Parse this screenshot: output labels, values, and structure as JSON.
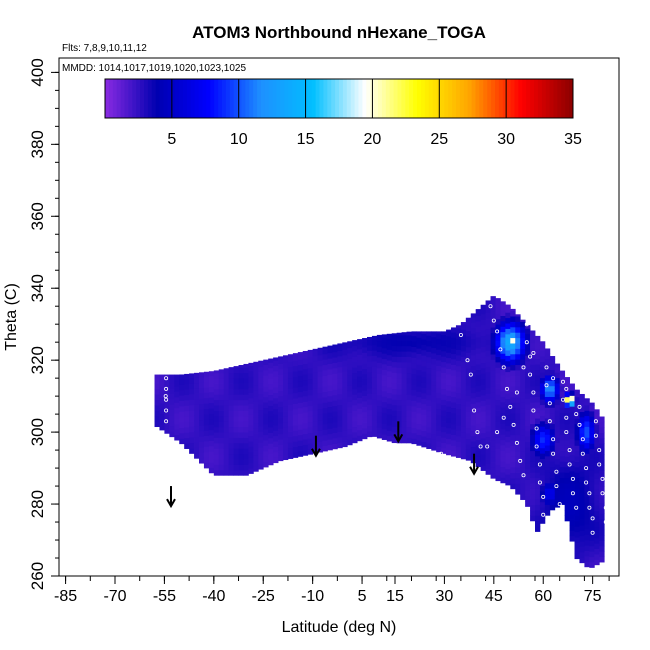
{
  "chart_data": {
    "type": "heatmap",
    "title": "ATOM3 Northbound nHexane_TOGA",
    "subtitle_lines": [
      "Flts: 7,8,9,10,11,12",
      "MMDD: 1014,1017,1019,1020,1023,1025"
    ],
    "xlabel": "Latitude (deg N)",
    "ylabel": "Theta (C)",
    "xlim": [
      -87,
      83
    ],
    "ylim": [
      260,
      404
    ],
    "x_ticks": [
      -85,
      -70,
      -55,
      -40,
      -25,
      -10,
      5,
      15,
      30,
      45,
      60,
      75
    ],
    "x_tick_labels": [
      "-85",
      "-70",
      "-55",
      "-40",
      "-25",
      "-10",
      "5",
      "15",
      "30",
      "45",
      "60",
      "75"
    ],
    "y_ticks": [
      260,
      280,
      300,
      320,
      340,
      360,
      380,
      400
    ],
    "y_tick_labels": [
      "260",
      "280",
      "300",
      "320",
      "340",
      "360",
      "380",
      "400"
    ],
    "colorbar": {
      "min": 0,
      "max": 35,
      "ticks": [
        5,
        10,
        15,
        20,
        25,
        30,
        35
      ],
      "tick_labels": [
        "5",
        "10",
        "15",
        "20",
        "25",
        "30",
        "35"
      ],
      "colors": [
        "#8a2be2",
        "#0000b0",
        "#0000ff",
        "#1e90ff",
        "#00bfff",
        "#ffffff",
        "#ffff00",
        "#ffa500",
        "#ff0000",
        "#8b0000"
      ]
    },
    "field": {
      "upper_boundary": [
        [
          -58,
          316
        ],
        [
          -50,
          316
        ],
        [
          -40,
          317
        ],
        [
          -30,
          319
        ],
        [
          -20,
          321
        ],
        [
          -10,
          323
        ],
        [
          0,
          325
        ],
        [
          10,
          327
        ],
        [
          20,
          328
        ],
        [
          30,
          328
        ],
        [
          35,
          330
        ],
        [
          40,
          334
        ],
        [
          45,
          338
        ],
        [
          50,
          335
        ],
        [
          55,
          330
        ],
        [
          60,
          325
        ],
        [
          65,
          318
        ],
        [
          70,
          312
        ],
        [
          75,
          308
        ],
        [
          78,
          304
        ]
      ],
      "lower_boundary": [
        [
          -58,
          302
        ],
        [
          -50,
          297
        ],
        [
          -40,
          288
        ],
        [
          -30,
          288
        ],
        [
          -20,
          292
        ],
        [
          -10,
          294
        ],
        [
          0,
          296
        ],
        [
          8,
          299
        ],
        [
          15,
          297
        ],
        [
          20,
          297
        ],
        [
          30,
          294
        ],
        [
          38,
          292
        ],
        [
          45,
          287
        ],
        [
          50,
          285
        ],
        [
          55,
          280
        ],
        [
          58,
          272
        ],
        [
          62,
          278
        ],
        [
          66,
          280
        ],
        [
          70,
          265
        ],
        [
          74,
          262
        ],
        [
          78,
          264
        ]
      ],
      "base_value": 2.5,
      "enhancements": [
        {
          "lat": 50,
          "theta": 325,
          "value": 14,
          "spread_lat": 5,
          "spread_theta": 6
        },
        {
          "lat": 51,
          "theta": 325,
          "value": 25,
          "spread_lat": 1,
          "spread_theta": 1.2
        },
        {
          "lat": 62,
          "theta": 312,
          "value": 12,
          "spread_lat": 3,
          "spread_theta": 4
        },
        {
          "lat": 68,
          "theta": 309,
          "value": 28,
          "spread_lat": 1.5,
          "spread_theta": 1.5
        },
        {
          "lat": 73,
          "theta": 300,
          "value": 10,
          "spread_lat": 3,
          "spread_theta": 6
        },
        {
          "lat": 60,
          "theta": 298,
          "value": 9,
          "spread_lat": 4,
          "spread_theta": 5
        },
        {
          "lat": 62,
          "theta": 283,
          "value": 7,
          "spread_lat": 3,
          "spread_theta": 4
        }
      ],
      "dark_zones": [
        {
          "lat": 68,
          "theta": 280,
          "value": 4.5,
          "spread_lat": 8,
          "spread_theta": 12
        },
        {
          "lat": 20,
          "theta": 325,
          "value": 3.8,
          "spread_lat": 25,
          "spread_theta": 4
        }
      ]
    },
    "sample_points": [
      [
        -54.5,
        315
      ],
      [
        -54.5,
        312
      ],
      [
        -54.5,
        309
      ],
      [
        -54.5,
        306
      ],
      [
        -54.5,
        303
      ],
      [
        -54.6,
        310
      ],
      [
        32,
        332
      ],
      [
        35,
        327
      ],
      [
        37,
        320
      ],
      [
        38,
        316
      ],
      [
        39,
        306
      ],
      [
        40,
        300
      ],
      [
        41,
        296
      ],
      [
        44,
        335
      ],
      [
        45,
        331
      ],
      [
        46,
        328
      ],
      [
        47,
        339
      ],
      [
        47,
        323
      ],
      [
        48,
        318
      ],
      [
        49,
        312
      ],
      [
        50,
        307
      ],
      [
        51,
        302
      ],
      [
        52,
        297
      ],
      [
        53,
        292
      ],
      [
        54,
        288
      ],
      [
        55,
        330
      ],
      [
        55,
        325
      ],
      [
        56,
        321
      ],
      [
        56,
        316
      ],
      [
        57,
        311
      ],
      [
        57,
        306
      ],
      [
        58,
        301
      ],
      [
        58,
        296
      ],
      [
        59,
        291
      ],
      [
        59,
        286
      ],
      [
        60,
        282
      ],
      [
        60,
        277
      ],
      [
        61,
        318
      ],
      [
        61,
        313
      ],
      [
        62,
        308
      ],
      [
        62,
        303
      ],
      [
        63,
        298
      ],
      [
        63,
        294
      ],
      [
        64,
        289
      ],
      [
        64,
        285
      ],
      [
        65,
        280
      ],
      [
        65,
        276
      ],
      [
        66,
        314
      ],
      [
        66,
        309
      ],
      [
        67,
        304
      ],
      [
        67,
        300
      ],
      [
        68,
        295
      ],
      [
        68,
        291
      ],
      [
        69,
        287
      ],
      [
        69,
        283
      ],
      [
        70,
        279
      ],
      [
        71,
        307
      ],
      [
        71,
        302
      ],
      [
        72,
        298
      ],
      [
        72,
        294
      ],
      [
        73,
        290
      ],
      [
        73,
        286
      ],
      [
        74,
        283
      ],
      [
        74,
        279
      ],
      [
        75,
        276
      ],
      [
        75,
        272
      ],
      [
        76,
        303
      ],
      [
        76,
        299
      ],
      [
        77,
        295
      ],
      [
        77,
        291
      ],
      [
        78,
        287
      ],
      [
        78,
        283
      ],
      [
        79,
        279
      ],
      [
        79,
        275
      ],
      [
        80,
        271
      ],
      [
        29,
        294
      ],
      [
        43,
        296
      ],
      [
        46,
        300
      ],
      [
        48,
        304
      ],
      [
        52,
        311
      ],
      [
        54,
        318
      ],
      [
        57,
        322
      ],
      [
        60,
        326
      ],
      [
        63,
        315
      ],
      [
        67,
        312
      ],
      [
        70,
        305
      ]
    ],
    "arrows": [
      {
        "lat": -53,
        "theta": 285
      },
      {
        "lat": -9,
        "theta": 299
      },
      {
        "lat": 16,
        "theta": 303
      },
      {
        "lat": 39,
        "theta": 294
      }
    ]
  }
}
